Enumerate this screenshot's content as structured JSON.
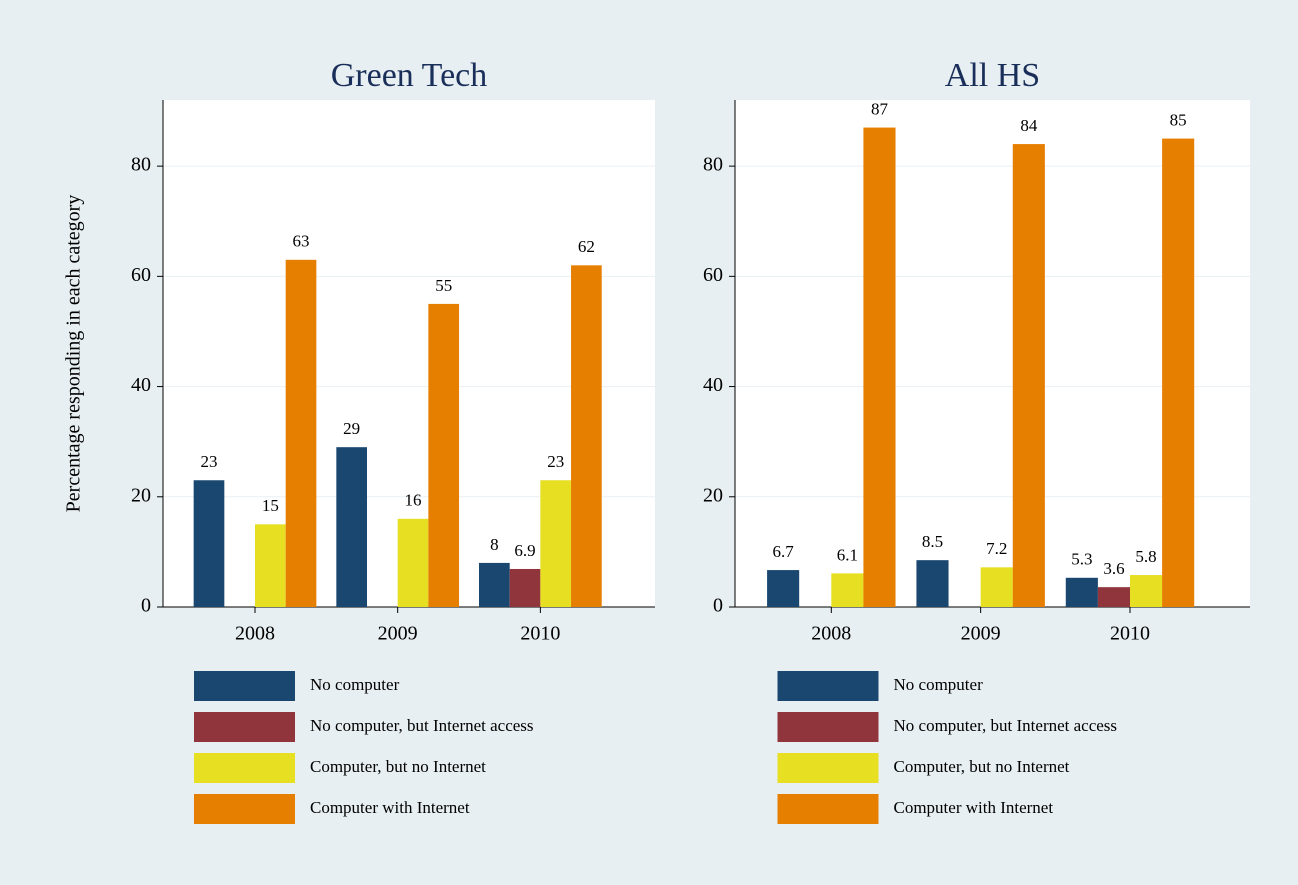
{
  "chart_data": [
    {
      "type": "bar",
      "title": "Green Tech",
      "y_label": "Percentage responding in each category",
      "categories": [
        "2008",
        "2009",
        "2010"
      ],
      "series": [
        {
          "name": "No computer",
          "color": "#1a476f",
          "values": [
            23,
            29,
            8
          ]
        },
        {
          "name": "No computer, but Internet access",
          "color": "#90353b",
          "values": [
            null,
            null,
            6.9
          ]
        },
        {
          "name": "Computer, but no Internet",
          "color": "#e6df22",
          "values": [
            15,
            16,
            23
          ]
        },
        {
          "name": "Computer with Internet",
          "color": "#e67e00",
          "values": [
            63,
            55,
            62
          ]
        }
      ],
      "ylim": [
        0,
        92
      ],
      "yticks": [
        0,
        20,
        40,
        60,
        80
      ],
      "grid": true
    },
    {
      "type": "bar",
      "title": "All HS",
      "categories": [
        "2008",
        "2009",
        "2010"
      ],
      "series": [
        {
          "name": "No computer",
          "color": "#1a476f",
          "values": [
            6.7,
            8.5,
            5.3
          ]
        },
        {
          "name": "No computer, but Internet access",
          "color": "#90353b",
          "values": [
            null,
            null,
            3.6
          ]
        },
        {
          "name": "Computer, but no Internet",
          "color": "#e6df22",
          "values": [
            6.1,
            7.2,
            5.8
          ]
        },
        {
          "name": "Computer with Internet",
          "color": "#e67e00",
          "values": [
            87,
            84,
            85
          ]
        }
      ],
      "ylim": [
        0,
        92
      ],
      "yticks": [
        0,
        20,
        40,
        60,
        80
      ],
      "grid": true
    }
  ]
}
